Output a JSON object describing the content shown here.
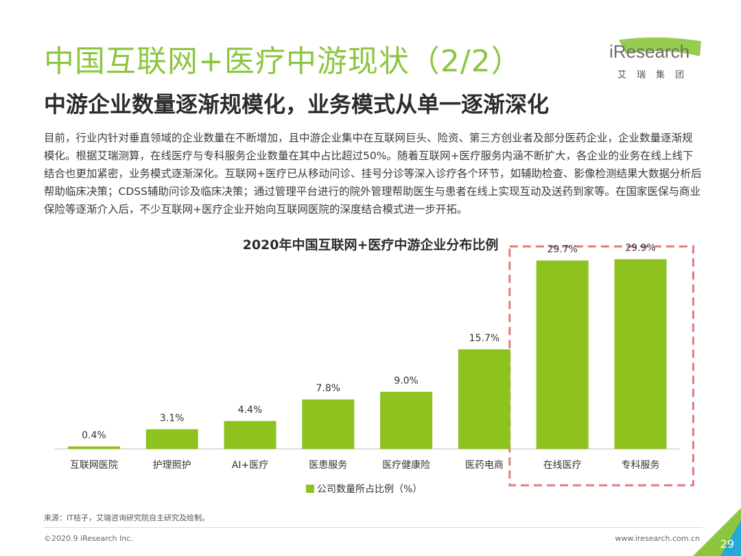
{
  "header": {
    "title": "中国互联网+医疗中游现状（2/2）",
    "subtitle": "中游企业数量逐渐规模化，业务模式从单一逐渐深化"
  },
  "logo": {
    "text": "iResearch",
    "sub": "艾瑞集团"
  },
  "body": {
    "paragraph": "目前，行业内针对垂直领域的企业数量在不断增加，且中游企业集中在互联网巨头、险资、第三方创业者及部分医药企业，企业数量逐渐规模化。根据艾瑞测算，在线医疗与专科服务企业数量在其中占比超过50%。随着互联网+医疗服务内涵不断扩大，各企业的业务在线上线下结合也更加紧密，业务模式逐渐深化。互联网+医疗已从移动问诊、挂号分诊等深入诊疗各个环节，如辅助检查、影像检测结果大数据分析后帮助临床决策；CDSS辅助问诊及临床决策；通过管理平台进行的院外管理帮助医生与患者在线上实现互动及送药到家等。在国家医保与商业保险等逐渐介入后，不少互联网+医疗企业开始向互联网医院的深度结合模式进一步开拓。"
  },
  "chart_data": {
    "type": "bar",
    "title": "2020年中国互联网+医疗中游企业分布比例",
    "categories": [
      "互联网医院",
      "护理照护",
      "AI+医疗",
      "医患服务",
      "医疗健康险",
      "医药电商",
      "在线医疗",
      "专科服务"
    ],
    "series": [
      {
        "name": "公司数量所占比例（%）",
        "values": [
          0.4,
          3.1,
          4.4,
          7.8,
          9.0,
          15.7,
          29.7,
          29.9
        ],
        "labels": [
          "0.4%",
          "3.1%",
          "4.4%",
          "7.8%",
          "9.0%",
          "15.7%",
          "29.7%",
          "29.9%"
        ]
      }
    ],
    "ylim": [
      0,
      33
    ],
    "highlight": [
      "在线医疗",
      "专科服务"
    ],
    "grid": false,
    "legend": "bottom-center"
  },
  "colors": {
    "accent": "#8cc63f",
    "bar": "#8dc21f",
    "highlight_border": "#e07b7b"
  },
  "footer": {
    "source": "来源：IT桔子，艾瑞咨询研究院自主研究及绘制。",
    "copyright": "©2020.9 iResearch Inc.",
    "website": "www.iresearch.com.cn",
    "page": "29"
  }
}
